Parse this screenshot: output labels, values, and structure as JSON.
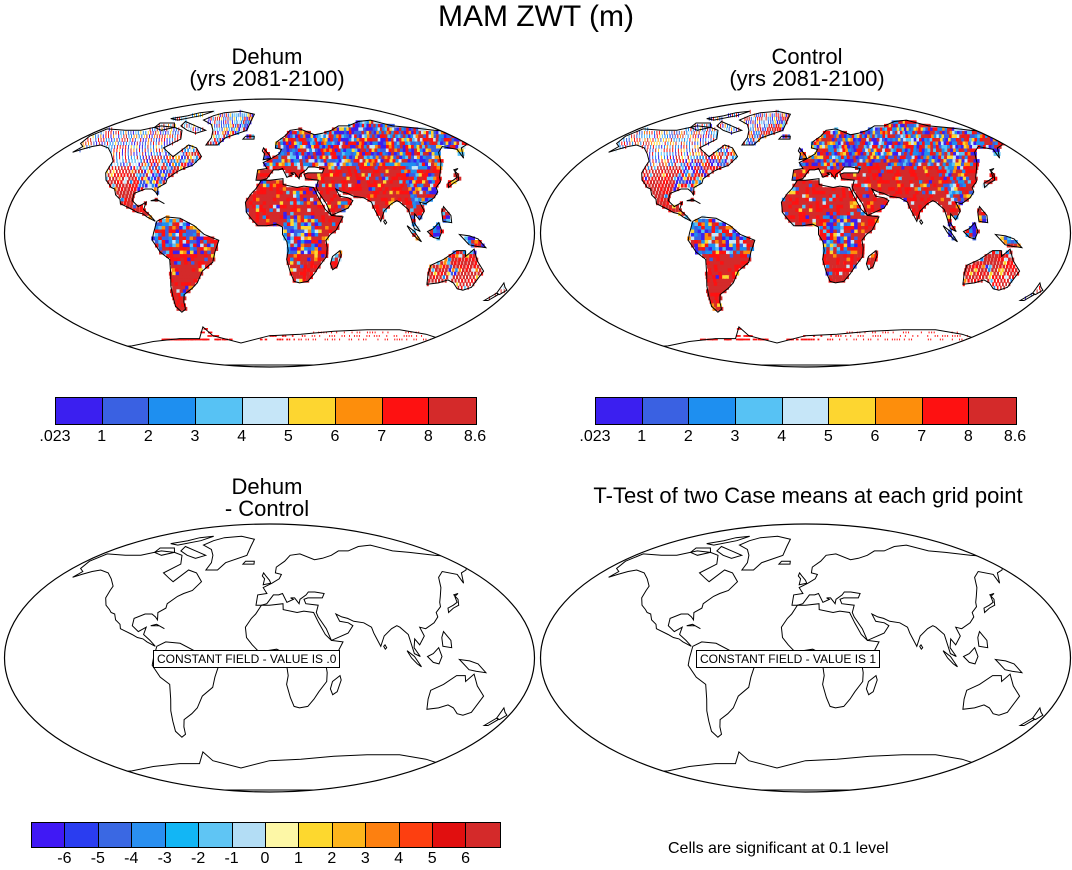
{
  "figure": {
    "title": "MAM ZWT (m)",
    "panels": [
      {
        "id": "dehum",
        "title_line1": "Dehum",
        "title_line2": "(yrs 2081-2100)",
        "field": "filled"
      },
      {
        "id": "control",
        "title_line1": "Control",
        "title_line2": "(yrs 2081-2100)",
        "field": "filled"
      },
      {
        "id": "diff",
        "title_line1": "Dehum",
        "title_line2": "- Control",
        "field": "constant",
        "constant_label": "CONSTANT FIELD - VALUE IS .0"
      },
      {
        "id": "ttest",
        "title_line1": "T-Test of two Case means at each grid point",
        "field": "constant",
        "constant_label": "CONSTANT FIELD - VALUE IS 1"
      }
    ],
    "colorbar_top": {
      "colors": [
        "#3b1ff0",
        "#3a61e2",
        "#1e8ff0",
        "#57c2f4",
        "#c6e6f8",
        "#fdd630",
        "#fd8e0c",
        "#fe1111",
        "#d42a2a"
      ],
      "labels": [
        ".023",
        "1",
        "2",
        "3",
        "4",
        "5",
        "6",
        "7",
        "8",
        "8.6"
      ]
    },
    "colorbar_diff": {
      "colors": [
        "#4019f5",
        "#2a3df0",
        "#3a68e3",
        "#2a8ff0",
        "#12b6f5",
        "#5fc5f4",
        "#b3ddf5",
        "#fdf7a6",
        "#fdd82e",
        "#fdb51c",
        "#fd8010",
        "#fd3f10",
        "#e10f0f",
        "#d42a2a"
      ],
      "labels": [
        "-6",
        "-5",
        "-4",
        "-3",
        "-2",
        "-1",
        "0",
        "1",
        "2",
        "3",
        "4",
        "5",
        "6"
      ]
    },
    "significance_note": "Cells are significant at 0.1 level"
  }
}
